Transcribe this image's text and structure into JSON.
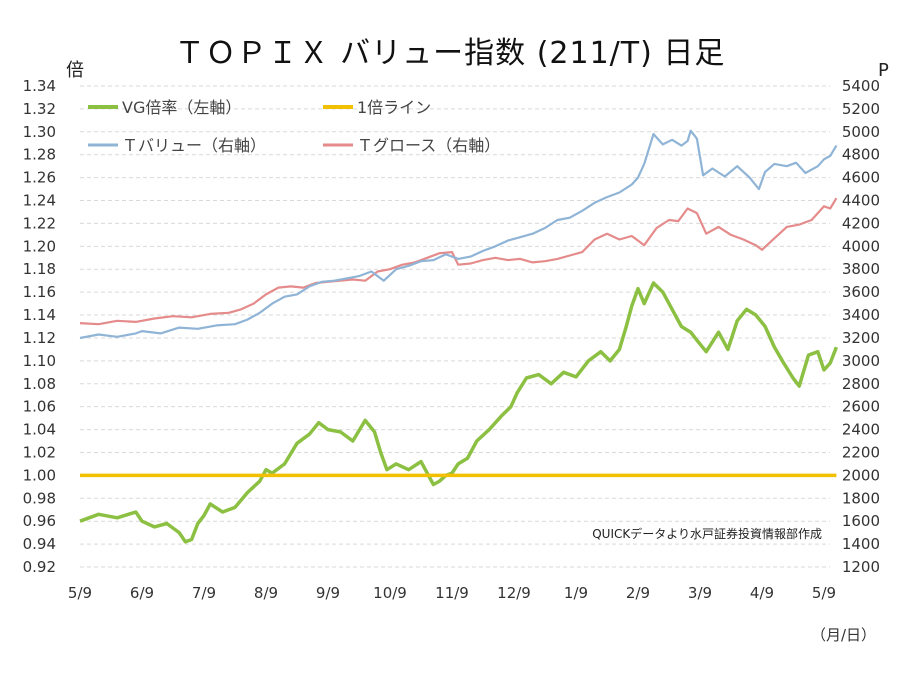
{
  "chart_data": {
    "type": "line",
    "title": "ＴＯＰＩＸ バリュー指数 (211/T) 日足",
    "y_left_label": "倍",
    "y_right_label": "P",
    "x_axis_unit_label": "（月/日）",
    "source_note": "QUICKデータより水戸証券投資情報部作成",
    "grid": true,
    "legend_position": "top-left",
    "x_ticks": [
      "5/9",
      "6/9",
      "7/9",
      "8/9",
      "9/9",
      "10/9",
      "11/9",
      "12/9",
      "1/9",
      "2/9",
      "3/9",
      "4/9",
      "5/9"
    ],
    "y_left_range": [
      0.92,
      1.34
    ],
    "y_left_ticks": [
      "0.92",
      "0.94",
      "0.96",
      "0.98",
      "1.00",
      "1.02",
      "1.04",
      "1.06",
      "1.08",
      "1.10",
      "1.12",
      "1.14",
      "1.16",
      "1.18",
      "1.20",
      "1.22",
      "1.24",
      "1.26",
      "1.28",
      "1.30",
      "1.32",
      "1.34"
    ],
    "y_right_range": [
      1200,
      5400
    ],
    "y_right_ticks": [
      "1200",
      "1400",
      "1600",
      "1800",
      "2000",
      "2200",
      "2400",
      "2600",
      "2800",
      "3000",
      "3200",
      "3400",
      "3600",
      "3800",
      "4000",
      "4200",
      "4400",
      "4600",
      "4800",
      "5000",
      "5200",
      "5400"
    ],
    "series": [
      {
        "name": "VG倍率（左軸）",
        "axis": "left",
        "color": "#8cc043",
        "points": [
          [
            0,
            0.96
          ],
          [
            0.3,
            0.966
          ],
          [
            0.6,
            0.963
          ],
          [
            0.9,
            0.968
          ],
          [
            1.0,
            0.96
          ],
          [
            1.2,
            0.955
          ],
          [
            1.4,
            0.958
          ],
          [
            1.6,
            0.95
          ],
          [
            1.7,
            0.942
          ],
          [
            1.8,
            0.944
          ],
          [
            1.9,
            0.958
          ],
          [
            2.0,
            0.965
          ],
          [
            2.1,
            0.975
          ],
          [
            2.3,
            0.968
          ],
          [
            2.5,
            0.972
          ],
          [
            2.7,
            0.985
          ],
          [
            2.9,
            0.995
          ],
          [
            3.0,
            1.005
          ],
          [
            3.1,
            1.002
          ],
          [
            3.3,
            1.01
          ],
          [
            3.5,
            1.028
          ],
          [
            3.7,
            1.036
          ],
          [
            3.85,
            1.046
          ],
          [
            4.0,
            1.04
          ],
          [
            4.2,
            1.038
          ],
          [
            4.4,
            1.03
          ],
          [
            4.6,
            1.048
          ],
          [
            4.75,
            1.038
          ],
          [
            4.85,
            1.02
          ],
          [
            4.95,
            1.005
          ],
          [
            5.1,
            1.01
          ],
          [
            5.3,
            1.005
          ],
          [
            5.5,
            1.012
          ],
          [
            5.6,
            1.002
          ],
          [
            5.7,
            0.992
          ],
          [
            5.8,
            0.995
          ],
          [
            5.9,
            1.0
          ],
          [
            6.0,
            1.002
          ],
          [
            6.1,
            1.01
          ],
          [
            6.25,
            1.015
          ],
          [
            6.4,
            1.03
          ],
          [
            6.6,
            1.04
          ],
          [
            6.8,
            1.052
          ],
          [
            6.95,
            1.06
          ],
          [
            7.05,
            1.072
          ],
          [
            7.2,
            1.085
          ],
          [
            7.4,
            1.088
          ],
          [
            7.6,
            1.08
          ],
          [
            7.8,
            1.09
          ],
          [
            8.0,
            1.086
          ],
          [
            8.2,
            1.1
          ],
          [
            8.4,
            1.108
          ],
          [
            8.55,
            1.1
          ],
          [
            8.7,
            1.11
          ],
          [
            8.8,
            1.128
          ],
          [
            8.9,
            1.148
          ],
          [
            9.0,
            1.163
          ],
          [
            9.1,
            1.15
          ],
          [
            9.25,
            1.168
          ],
          [
            9.4,
            1.16
          ],
          [
            9.55,
            1.145
          ],
          [
            9.7,
            1.13
          ],
          [
            9.85,
            1.125
          ],
          [
            9.95,
            1.118
          ],
          [
            10.1,
            1.108
          ],
          [
            10.3,
            1.125
          ],
          [
            10.45,
            1.11
          ],
          [
            10.6,
            1.135
          ],
          [
            10.75,
            1.145
          ],
          [
            10.9,
            1.14
          ],
          [
            11.05,
            1.13
          ],
          [
            11.2,
            1.112
          ],
          [
            11.35,
            1.098
          ],
          [
            11.5,
            1.085
          ],
          [
            11.6,
            1.078
          ],
          [
            11.75,
            1.105
          ],
          [
            11.9,
            1.108
          ],
          [
            12.0,
            1.092
          ],
          [
            12.1,
            1.098
          ],
          [
            12.2,
            1.112
          ]
        ]
      },
      {
        "name": "1倍ライン",
        "axis": "left",
        "color": "#f2c000",
        "points": [
          [
            0,
            1.0
          ],
          [
            12.2,
            1.0
          ]
        ]
      },
      {
        "name": "Ｔバリュー（右軸）",
        "axis": "right",
        "color": "#8fb4d6",
        "points": [
          [
            0,
            3200
          ],
          [
            0.3,
            3230
          ],
          [
            0.6,
            3210
          ],
          [
            0.9,
            3240
          ],
          [
            1.0,
            3260
          ],
          [
            1.3,
            3240
          ],
          [
            1.6,
            3290
          ],
          [
            1.9,
            3280
          ],
          [
            2.2,
            3310
          ],
          [
            2.5,
            3320
          ],
          [
            2.7,
            3360
          ],
          [
            2.9,
            3420
          ],
          [
            3.1,
            3500
          ],
          [
            3.3,
            3560
          ],
          [
            3.5,
            3580
          ],
          [
            3.7,
            3650
          ],
          [
            3.9,
            3690
          ],
          [
            4.1,
            3700
          ],
          [
            4.3,
            3720
          ],
          [
            4.5,
            3740
          ],
          [
            4.7,
            3780
          ],
          [
            4.9,
            3700
          ],
          [
            5.1,
            3800
          ],
          [
            5.3,
            3830
          ],
          [
            5.5,
            3870
          ],
          [
            5.7,
            3880
          ],
          [
            5.9,
            3930
          ],
          [
            6.1,
            3890
          ],
          [
            6.3,
            3910
          ],
          [
            6.5,
            3960
          ],
          [
            6.7,
            4000
          ],
          [
            6.9,
            4050
          ],
          [
            7.1,
            4080
          ],
          [
            7.3,
            4110
          ],
          [
            7.5,
            4160
          ],
          [
            7.7,
            4230
          ],
          [
            7.9,
            4250
          ],
          [
            8.1,
            4310
          ],
          [
            8.3,
            4380
          ],
          [
            8.5,
            4430
          ],
          [
            8.7,
            4470
          ],
          [
            8.9,
            4540
          ],
          [
            9.0,
            4600
          ],
          [
            9.1,
            4720
          ],
          [
            9.25,
            4980
          ],
          [
            9.4,
            4890
          ],
          [
            9.55,
            4930
          ],
          [
            9.7,
            4880
          ],
          [
            9.8,
            4920
          ],
          [
            9.85,
            5010
          ],
          [
            9.95,
            4940
          ],
          [
            10.05,
            4620
          ],
          [
            10.2,
            4680
          ],
          [
            10.4,
            4610
          ],
          [
            10.6,
            4700
          ],
          [
            10.8,
            4600
          ],
          [
            10.95,
            4500
          ],
          [
            11.05,
            4650
          ],
          [
            11.2,
            4720
          ],
          [
            11.4,
            4700
          ],
          [
            11.55,
            4730
          ],
          [
            11.7,
            4640
          ],
          [
            11.9,
            4700
          ],
          [
            12.0,
            4760
          ],
          [
            12.1,
            4790
          ],
          [
            12.2,
            4880
          ]
        ]
      },
      {
        "name": "Ｔグロース（右軸）",
        "axis": "right",
        "color": "#e58b8b",
        "points": [
          [
            0,
            3330
          ],
          [
            0.3,
            3320
          ],
          [
            0.6,
            3350
          ],
          [
            0.9,
            3340
          ],
          [
            1.2,
            3370
          ],
          [
            1.5,
            3390
          ],
          [
            1.8,
            3380
          ],
          [
            2.1,
            3410
          ],
          [
            2.4,
            3420
          ],
          [
            2.6,
            3450
          ],
          [
            2.8,
            3500
          ],
          [
            3.0,
            3580
          ],
          [
            3.2,
            3640
          ],
          [
            3.4,
            3650
          ],
          [
            3.6,
            3640
          ],
          [
            3.8,
            3680
          ],
          [
            4.0,
            3690
          ],
          [
            4.2,
            3700
          ],
          [
            4.4,
            3710
          ],
          [
            4.6,
            3700
          ],
          [
            4.8,
            3780
          ],
          [
            5.0,
            3800
          ],
          [
            5.2,
            3840
          ],
          [
            5.4,
            3860
          ],
          [
            5.6,
            3900
          ],
          [
            5.8,
            3940
          ],
          [
            6.0,
            3950
          ],
          [
            6.1,
            3840
          ],
          [
            6.3,
            3850
          ],
          [
            6.5,
            3880
          ],
          [
            6.7,
            3900
          ],
          [
            6.9,
            3880
          ],
          [
            7.1,
            3890
          ],
          [
            7.3,
            3860
          ],
          [
            7.5,
            3870
          ],
          [
            7.7,
            3890
          ],
          [
            7.9,
            3920
          ],
          [
            8.1,
            3950
          ],
          [
            8.3,
            4060
          ],
          [
            8.5,
            4110
          ],
          [
            8.7,
            4060
          ],
          [
            8.9,
            4090
          ],
          [
            9.1,
            4010
          ],
          [
            9.3,
            4160
          ],
          [
            9.5,
            4230
          ],
          [
            9.65,
            4220
          ],
          [
            9.8,
            4330
          ],
          [
            9.95,
            4290
          ],
          [
            10.1,
            4110
          ],
          [
            10.3,
            4170
          ],
          [
            10.5,
            4100
          ],
          [
            10.7,
            4060
          ],
          [
            10.9,
            4010
          ],
          [
            11.0,
            3970
          ],
          [
            11.2,
            4070
          ],
          [
            11.4,
            4170
          ],
          [
            11.6,
            4190
          ],
          [
            11.8,
            4230
          ],
          [
            12.0,
            4350
          ],
          [
            12.1,
            4330
          ],
          [
            12.2,
            4420
          ]
        ]
      }
    ]
  }
}
